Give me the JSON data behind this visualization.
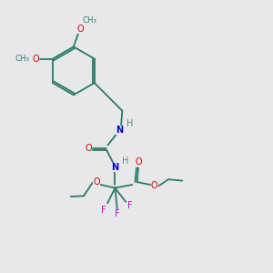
{
  "background_color": "#e8e8ea",
  "bond_color": "#2a7a6a",
  "atom_colors": {
    "O": "#dd0000",
    "N": "#0000cc",
    "F": "#cc00cc",
    "H": "#5a8a80",
    "C": "#2a7a6a"
  },
  "figsize": [
    3.0,
    3.0
  ],
  "dpi": 100,
  "lw": 1.3,
  "fs": 7.0,
  "fsc": 6.2
}
